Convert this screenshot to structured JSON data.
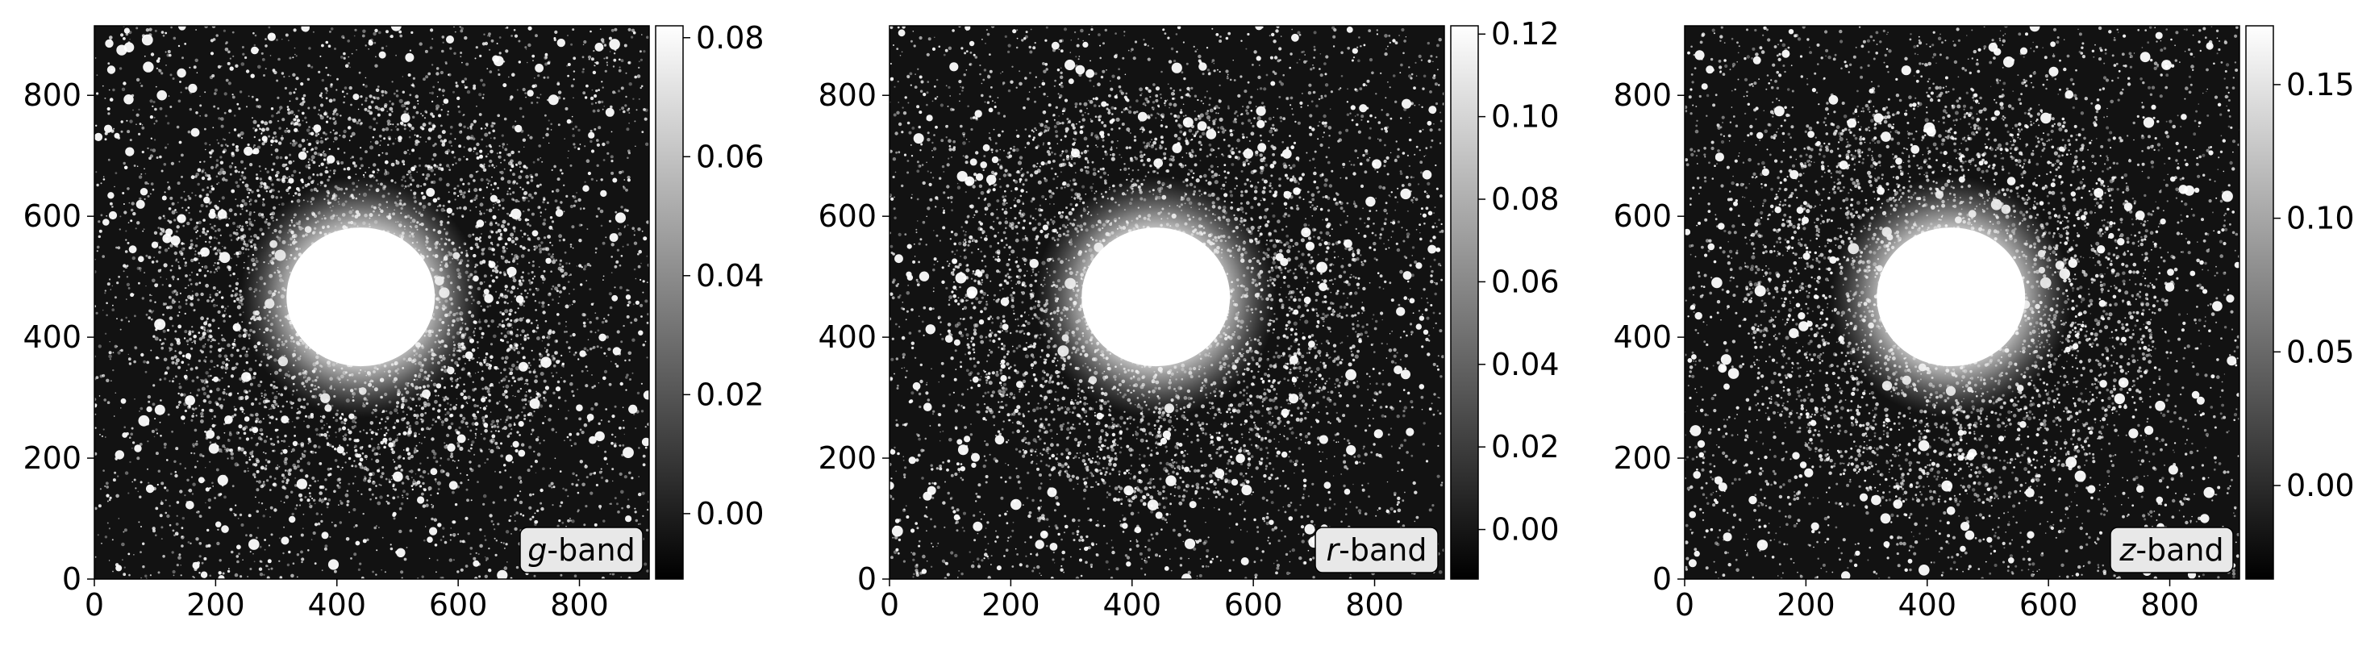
{
  "panels": [
    {
      "band_label_italic": "g",
      "band_label_rest": "-band",
      "x_ticks": [
        "0",
        "200",
        "400",
        "600",
        "800"
      ],
      "y_ticks": [
        "0",
        "200",
        "400",
        "600",
        "800"
      ],
      "colorbar_ticks": [
        "0.00",
        "0.02",
        "0.04",
        "0.06",
        "0.08"
      ],
      "colorbar_range": [
        -0.011,
        0.082
      ],
      "colorbar_tick_values": [
        0.0,
        0.02,
        0.04,
        0.06,
        0.08
      ],
      "seed": 11
    },
    {
      "band_label_italic": "r",
      "band_label_rest": "-band",
      "x_ticks": [
        "0",
        "200",
        "400",
        "600",
        "800"
      ],
      "y_ticks": [
        "0",
        "200",
        "400",
        "600",
        "800"
      ],
      "colorbar_ticks": [
        "0.00",
        "0.02",
        "0.04",
        "0.06",
        "0.08",
        "0.10",
        "0.12"
      ],
      "colorbar_range": [
        -0.012,
        0.122
      ],
      "colorbar_tick_values": [
        0.0,
        0.02,
        0.04,
        0.06,
        0.08,
        0.1,
        0.12
      ],
      "seed": 23
    },
    {
      "band_label_italic": "z",
      "band_label_rest": "-band",
      "x_ticks": [
        "0",
        "200",
        "400",
        "600",
        "800"
      ],
      "y_ticks": [
        "0",
        "200",
        "400",
        "600",
        "800"
      ],
      "colorbar_ticks": [
        "0.00",
        "0.05",
        "0.10",
        "0.15"
      ],
      "colorbar_range": [
        -0.035,
        0.172
      ],
      "colorbar_tick_values": [
        0.0,
        0.05,
        0.1,
        0.15
      ],
      "seed": 37
    }
  ],
  "axis_range": [
    0,
    915
  ],
  "tick_values": [
    0,
    200,
    400,
    600,
    800
  ],
  "colors": {
    "image_bg": "#121212",
    "star": "#ffffff",
    "frame": "#000000",
    "label_box": "#e8e8e8"
  }
}
